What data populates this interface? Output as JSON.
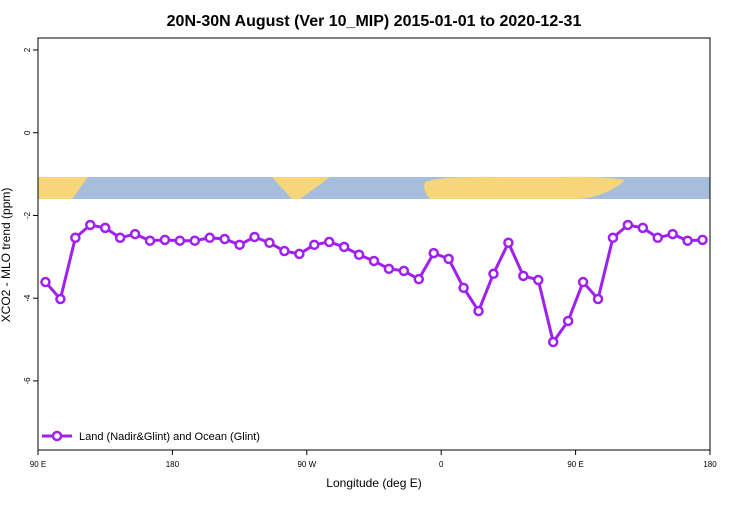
{
  "chart_data": {
    "type": "line",
    "title": "20N-30N August (Ver 10_MIP)   2015-01-01 to 2020-12-31",
    "xlabel": "Longitude (deg E)",
    "ylabel": "XCO2 - MLO trend (ppm)",
    "x": [
      95,
      105,
      115,
      125,
      135,
      145,
      155,
      165,
      175,
      185,
      195,
      205,
      215,
      225,
      235,
      245,
      255,
      265,
      275,
      285,
      295,
      305,
      315,
      325,
      335,
      345,
      355,
      365,
      375,
      385,
      395,
      405,
      415,
      425,
      435,
      445,
      455,
      465,
      475,
      485,
      495,
      505,
      515,
      525,
      535
    ],
    "series": [
      {
        "name": "Land (Nadir&Glint) and Ocean (Glint)",
        "color": "#a020f0",
        "values": [
          -3.61,
          -4.02,
          -2.54,
          -2.23,
          -2.3,
          -2.54,
          -2.45,
          -2.61,
          -2.59,
          -2.61,
          -2.61,
          -2.54,
          -2.57,
          -2.71,
          -2.52,
          -2.66,
          -2.86,
          -2.93,
          -2.71,
          -2.64,
          -2.76,
          -2.95,
          -3.1,
          -3.29,
          -3.34,
          -3.54,
          -2.91,
          -3.05,
          -3.75,
          -4.31,
          -3.41,
          -2.66,
          -3.46,
          -3.56,
          -5.06,
          -4.55,
          -3.61,
          -4.02,
          -2.54,
          -2.23,
          -2.3,
          -2.54,
          -2.45,
          -2.61,
          -2.59
        ]
      }
    ],
    "xlim": [
      90,
      540
    ],
    "xticks": [
      {
        "value": 90,
        "label": "90 E"
      },
      {
        "value": 180,
        "label": "180"
      },
      {
        "value": 270,
        "label": "90 W"
      },
      {
        "value": 360,
        "label": "0"
      },
      {
        "value": 450,
        "label": "90 E"
      },
      {
        "value": 540,
        "label": "180"
      }
    ],
    "ylim": [
      -7.67,
      2.29
    ],
    "yticks": [
      2,
      0,
      -2,
      -4,
      -6
    ],
    "legend": "bottom-left"
  }
}
